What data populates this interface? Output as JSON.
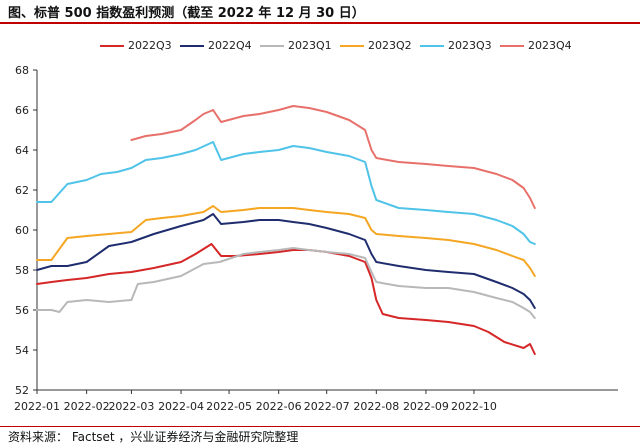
{
  "header": {
    "title": "图、标普 500 指数盈利预测（截至 2022 年 12 月 30 日）"
  },
  "footer": {
    "source": "资料来源： Factset ，兴业证券经济与金融研究院整理"
  },
  "chart_data": {
    "type": "line",
    "title": "图、标普 500 指数盈利预测（截至 2022 年 12 月 30 日）",
    "xlabel": "",
    "ylabel": "",
    "ylim": [
      52,
      68
    ],
    "yticks": [
      52,
      54,
      56,
      58,
      60,
      62,
      64,
      66,
      68
    ],
    "xticks": [
      "2022-01",
      "2022-02",
      "2022-03",
      "2022-04",
      "2022-05",
      "2022-06",
      "2022-07",
      "2022-08",
      "2022-09",
      "2022-10"
    ],
    "xlim": [
      "2022-01-01",
      "2022-12-30"
    ],
    "grid": false,
    "legend_position": "top",
    "series": [
      {
        "name": "2022Q3",
        "color": "#d62728",
        "points": [
          [
            "2022-01-01",
            57.3
          ],
          [
            "2022-01-10",
            57.4
          ],
          [
            "2022-01-20",
            57.5
          ],
          [
            "2022-02-01",
            57.6
          ],
          [
            "2022-02-15",
            57.8
          ],
          [
            "2022-03-01",
            57.9
          ],
          [
            "2022-03-15",
            58.1
          ],
          [
            "2022-04-01",
            58.4
          ],
          [
            "2022-04-10",
            58.8
          ],
          [
            "2022-04-20",
            59.3
          ],
          [
            "2022-04-26",
            58.7
          ],
          [
            "2022-05-05",
            58.7
          ],
          [
            "2022-05-20",
            58.8
          ],
          [
            "2022-06-01",
            58.9
          ],
          [
            "2022-06-10",
            59.0
          ],
          [
            "2022-06-20",
            59.0
          ],
          [
            "2022-07-01",
            58.9
          ],
          [
            "2022-07-15",
            58.7
          ],
          [
            "2022-07-25",
            58.4
          ],
          [
            "2022-07-29",
            57.6
          ],
          [
            "2022-08-01",
            56.5
          ],
          [
            "2022-08-05",
            55.8
          ],
          [
            "2022-08-15",
            55.6
          ],
          [
            "2022-09-01",
            55.5
          ],
          [
            "2022-09-15",
            55.4
          ],
          [
            "2022-10-01",
            55.2
          ],
          [
            "2022-10-10",
            54.9
          ],
          [
            "2022-10-20",
            54.4
          ],
          [
            "2022-11-01",
            54.1
          ],
          [
            "2022-11-05",
            54.3
          ],
          [
            "2022-11-08",
            53.8
          ]
        ]
      },
      {
        "name": "2022Q4",
        "color": "#1f2d6e",
        "points": [
          [
            "2022-01-01",
            58.0
          ],
          [
            "2022-01-10",
            58.2
          ],
          [
            "2022-01-20",
            58.2
          ],
          [
            "2022-02-01",
            58.4
          ],
          [
            "2022-02-15",
            59.2
          ],
          [
            "2022-03-01",
            59.4
          ],
          [
            "2022-03-15",
            59.8
          ],
          [
            "2022-04-01",
            60.2
          ],
          [
            "2022-04-15",
            60.5
          ],
          [
            "2022-04-21",
            60.8
          ],
          [
            "2022-04-26",
            60.3
          ],
          [
            "2022-05-10",
            60.4
          ],
          [
            "2022-05-20",
            60.5
          ],
          [
            "2022-06-01",
            60.5
          ],
          [
            "2022-06-10",
            60.4
          ],
          [
            "2022-06-20",
            60.3
          ],
          [
            "2022-07-01",
            60.1
          ],
          [
            "2022-07-15",
            59.8
          ],
          [
            "2022-07-25",
            59.5
          ],
          [
            "2022-07-29",
            58.8
          ],
          [
            "2022-08-01",
            58.4
          ],
          [
            "2022-08-15",
            58.2
          ],
          [
            "2022-09-01",
            58.0
          ],
          [
            "2022-09-15",
            57.9
          ],
          [
            "2022-10-01",
            57.8
          ],
          [
            "2022-10-15",
            57.4
          ],
          [
            "2022-10-25",
            57.1
          ],
          [
            "2022-11-01",
            56.8
          ],
          [
            "2022-11-05",
            56.5
          ],
          [
            "2022-11-08",
            56.1
          ]
        ]
      },
      {
        "name": "2023Q1",
        "color": "#b8b8b8",
        "points": [
          [
            "2022-01-01",
            56.0
          ],
          [
            "2022-01-10",
            56.0
          ],
          [
            "2022-01-15",
            55.9
          ],
          [
            "2022-01-20",
            56.4
          ],
          [
            "2022-02-01",
            56.5
          ],
          [
            "2022-02-15",
            56.4
          ],
          [
            "2022-03-01",
            56.5
          ],
          [
            "2022-03-05",
            57.3
          ],
          [
            "2022-03-15",
            57.4
          ],
          [
            "2022-04-01",
            57.7
          ],
          [
            "2022-04-15",
            58.3
          ],
          [
            "2022-04-25",
            58.4
          ],
          [
            "2022-05-10",
            58.8
          ],
          [
            "2022-05-20",
            58.9
          ],
          [
            "2022-06-01",
            59.0
          ],
          [
            "2022-06-10",
            59.1
          ],
          [
            "2022-06-20",
            59.0
          ],
          [
            "2022-07-01",
            58.9
          ],
          [
            "2022-07-15",
            58.8
          ],
          [
            "2022-07-25",
            58.6
          ],
          [
            "2022-07-29",
            57.9
          ],
          [
            "2022-08-01",
            57.4
          ],
          [
            "2022-08-15",
            57.2
          ],
          [
            "2022-09-01",
            57.1
          ],
          [
            "2022-09-15",
            57.1
          ],
          [
            "2022-10-01",
            56.9
          ],
          [
            "2022-10-15",
            56.6
          ],
          [
            "2022-10-25",
            56.4
          ],
          [
            "2022-11-01",
            56.1
          ],
          [
            "2022-11-05",
            55.9
          ],
          [
            "2022-11-08",
            55.6
          ]
        ]
      },
      {
        "name": "2023Q2",
        "color": "#f5a623",
        "points": [
          [
            "2022-01-01",
            58.5
          ],
          [
            "2022-01-10",
            58.5
          ],
          [
            "2022-01-20",
            59.6
          ],
          [
            "2022-02-01",
            59.7
          ],
          [
            "2022-02-15",
            59.8
          ],
          [
            "2022-03-01",
            59.9
          ],
          [
            "2022-03-10",
            60.5
          ],
          [
            "2022-03-20",
            60.6
          ],
          [
            "2022-04-01",
            60.7
          ],
          [
            "2022-04-15",
            60.9
          ],
          [
            "2022-04-21",
            61.2
          ],
          [
            "2022-04-26",
            60.9
          ],
          [
            "2022-05-10",
            61.0
          ],
          [
            "2022-05-20",
            61.1
          ],
          [
            "2022-06-01",
            61.1
          ],
          [
            "2022-06-10",
            61.1
          ],
          [
            "2022-06-20",
            61.0
          ],
          [
            "2022-07-01",
            60.9
          ],
          [
            "2022-07-15",
            60.8
          ],
          [
            "2022-07-25",
            60.6
          ],
          [
            "2022-07-29",
            60.0
          ],
          [
            "2022-08-01",
            59.8
          ],
          [
            "2022-08-15",
            59.7
          ],
          [
            "2022-09-01",
            59.6
          ],
          [
            "2022-09-15",
            59.5
          ],
          [
            "2022-10-01",
            59.3
          ],
          [
            "2022-10-15",
            59.0
          ],
          [
            "2022-10-25",
            58.7
          ],
          [
            "2022-11-01",
            58.5
          ],
          [
            "2022-11-05",
            58.1
          ],
          [
            "2022-11-08",
            57.7
          ]
        ]
      },
      {
        "name": "2023Q3",
        "color": "#4fc3e8",
        "points": [
          [
            "2022-01-01",
            61.4
          ],
          [
            "2022-01-10",
            61.4
          ],
          [
            "2022-01-20",
            62.3
          ],
          [
            "2022-02-01",
            62.5
          ],
          [
            "2022-02-10",
            62.8
          ],
          [
            "2022-02-20",
            62.9
          ],
          [
            "2022-03-01",
            63.1
          ],
          [
            "2022-03-10",
            63.5
          ],
          [
            "2022-03-20",
            63.6
          ],
          [
            "2022-04-01",
            63.8
          ],
          [
            "2022-04-10",
            64.0
          ],
          [
            "2022-04-21",
            64.4
          ],
          [
            "2022-04-26",
            63.5
          ],
          [
            "2022-05-10",
            63.8
          ],
          [
            "2022-05-20",
            63.9
          ],
          [
            "2022-06-01",
            64.0
          ],
          [
            "2022-06-10",
            64.2
          ],
          [
            "2022-06-20",
            64.1
          ],
          [
            "2022-07-01",
            63.9
          ],
          [
            "2022-07-15",
            63.7
          ],
          [
            "2022-07-25",
            63.4
          ],
          [
            "2022-07-29",
            62.2
          ],
          [
            "2022-08-01",
            61.5
          ],
          [
            "2022-08-15",
            61.1
          ],
          [
            "2022-09-01",
            61.0
          ],
          [
            "2022-09-15",
            60.9
          ],
          [
            "2022-10-01",
            60.8
          ],
          [
            "2022-10-15",
            60.5
          ],
          [
            "2022-10-25",
            60.2
          ],
          [
            "2022-11-01",
            59.8
          ],
          [
            "2022-11-05",
            59.4
          ],
          [
            "2022-11-08",
            59.3
          ]
        ]
      },
      {
        "name": "2023Q4",
        "color": "#e8706a",
        "points": [
          [
            "2022-03-01",
            64.5
          ],
          [
            "2022-03-10",
            64.7
          ],
          [
            "2022-03-20",
            64.8
          ],
          [
            "2022-04-01",
            65.0
          ],
          [
            "2022-04-10",
            65.5
          ],
          [
            "2022-04-15",
            65.8
          ],
          [
            "2022-04-21",
            66.0
          ],
          [
            "2022-04-26",
            65.4
          ],
          [
            "2022-05-10",
            65.7
          ],
          [
            "2022-05-20",
            65.8
          ],
          [
            "2022-06-01",
            66.0
          ],
          [
            "2022-06-10",
            66.2
          ],
          [
            "2022-06-20",
            66.1
          ],
          [
            "2022-07-01",
            65.9
          ],
          [
            "2022-07-15",
            65.5
          ],
          [
            "2022-07-25",
            65.0
          ],
          [
            "2022-07-29",
            64.0
          ],
          [
            "2022-08-01",
            63.6
          ],
          [
            "2022-08-15",
            63.4
          ],
          [
            "2022-09-01",
            63.3
          ],
          [
            "2022-09-15",
            63.2
          ],
          [
            "2022-10-01",
            63.1
          ],
          [
            "2022-10-15",
            62.8
          ],
          [
            "2022-10-25",
            62.5
          ],
          [
            "2022-11-01",
            62.1
          ],
          [
            "2022-11-05",
            61.6
          ],
          [
            "2022-11-08",
            61.1
          ]
        ]
      }
    ]
  }
}
